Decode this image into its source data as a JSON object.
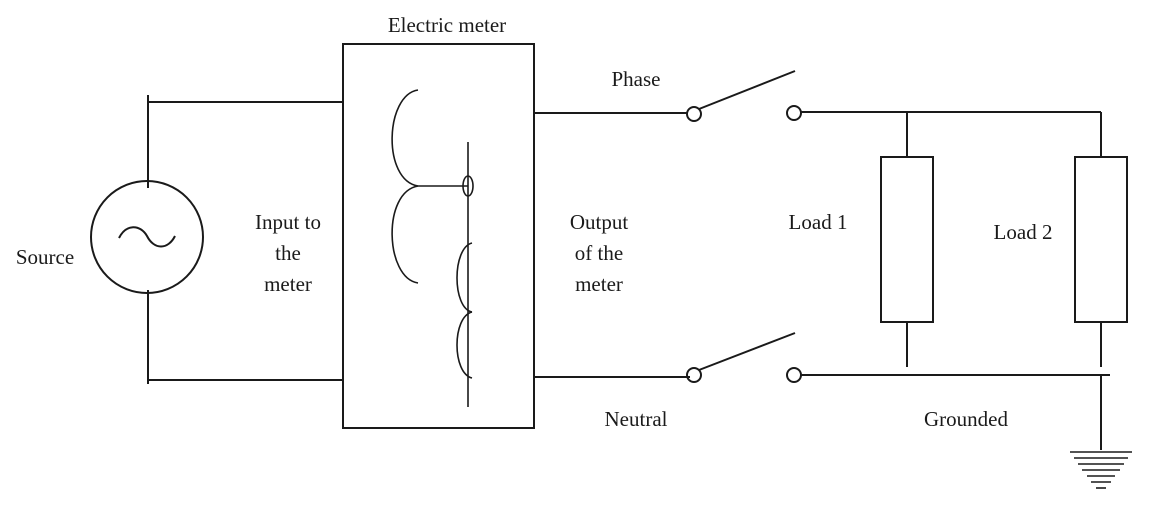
{
  "labels": {
    "meter_title": "Electric meter",
    "source": "Source",
    "input": [
      "Input to",
      "the",
      "meter"
    ],
    "output": [
      "Output",
      "of the",
      "meter"
    ],
    "phase": "Phase",
    "neutral": "Neutral",
    "load1": "Load 1",
    "load2": "Load 2",
    "grounded": "Grounded"
  },
  "icons": {
    "source": "ac-source-icon",
    "ground": "ground-icon",
    "switch": "switch-icon",
    "load": "resistor-icon"
  }
}
